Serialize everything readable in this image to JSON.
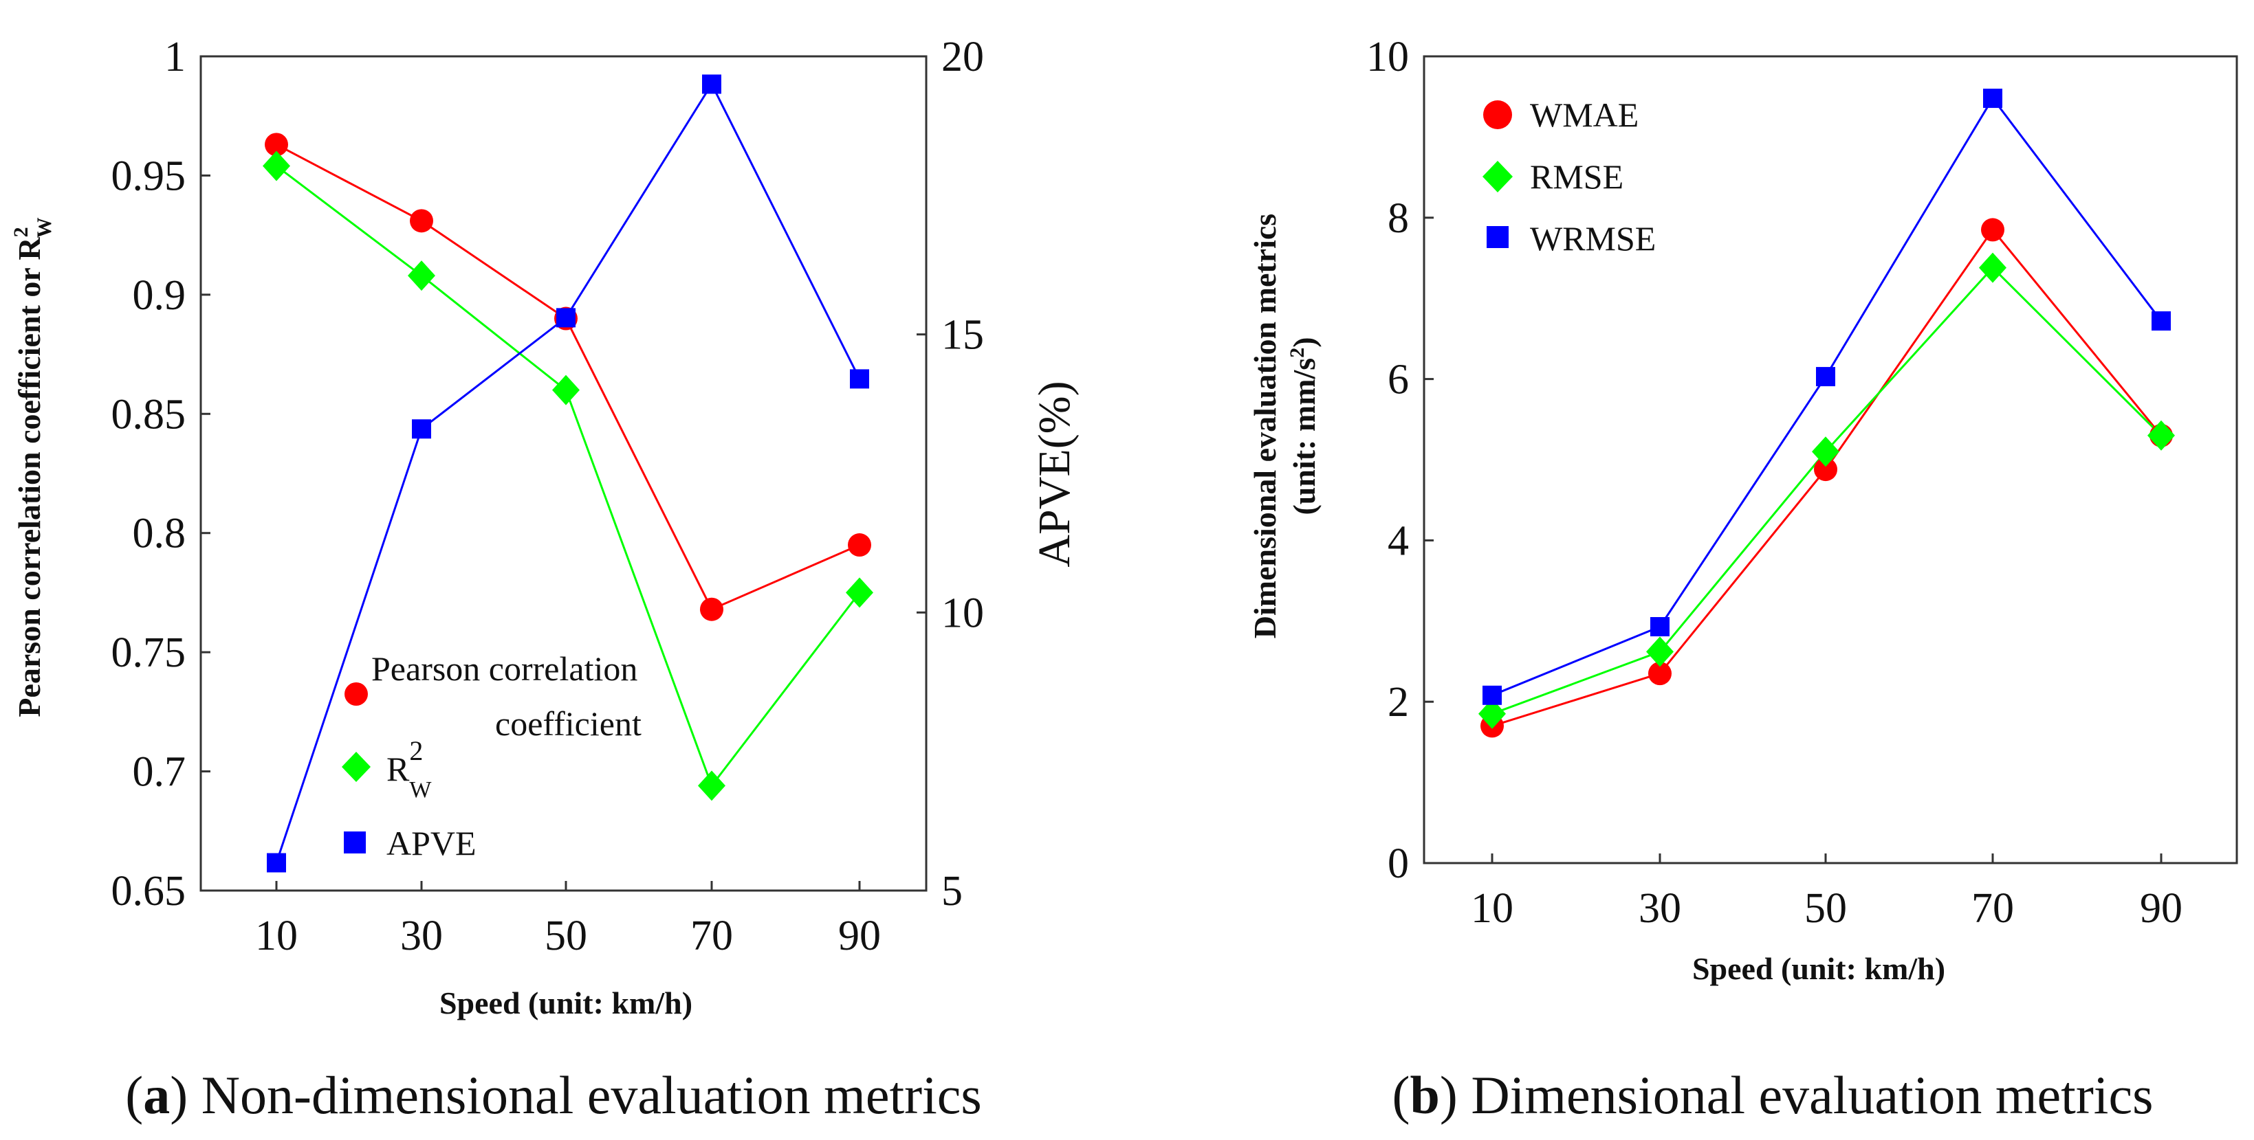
{
  "chart_data": [
    {
      "id": "a",
      "type": "line",
      "caption_letter": "a",
      "caption_text": "Non-dimensional evaluation metrics",
      "categories": [
        10,
        30,
        50,
        70,
        90
      ],
      "xlabel": "Speed (unit:  km/h)",
      "ylabel": "Pearson correlation coefficient or R",
      "ylabel_sup": "2",
      "ylabel_sub": "W",
      "ylim": [
        0.65,
        1.0
      ],
      "yticks": [
        "0.65",
        "0.7",
        "0.75",
        "0.8",
        "0.85",
        "0.9",
        "0.95",
        "1"
      ],
      "y2label": "APVE(%)",
      "y2lim": [
        5,
        20
      ],
      "y2ticks": [
        "5",
        "10",
        "15",
        "20"
      ],
      "series": [
        {
          "name": "Pearson correlation coefficient",
          "axis": "left",
          "marker": "circle",
          "color": "#ff0000",
          "values": [
            0.963,
            0.931,
            0.89,
            0.768,
            0.795
          ]
        },
        {
          "name": "R",
          "name_sup": "2",
          "name_sub": "W",
          "axis": "left",
          "marker": "diamond",
          "color": "#00ff00",
          "values": [
            0.954,
            0.908,
            0.86,
            0.694,
            0.775
          ]
        },
        {
          "name": "APVE",
          "axis": "right",
          "marker": "square",
          "color": "#0000ff",
          "values": [
            5.5,
            13.3,
            15.3,
            19.5,
            14.2
          ]
        }
      ],
      "legend": {
        "position": "lower-left",
        "entries": [
          "Pearson correlation",
          "coefficient",
          "R",
          "APVE"
        ]
      }
    },
    {
      "id": "b",
      "type": "line",
      "caption_letter": "b",
      "caption_text": "Dimensional evaluation metrics",
      "categories": [
        10,
        30,
        50,
        70,
        90
      ],
      "xlabel": "Speed (unit: km/h)",
      "ylabel_line1": "Dimensional evaluation metrics",
      "ylabel_line2": "(unit: mm/s",
      "ylabel_line2_sup": "2",
      "ylabel_line2_end": ")",
      "ylim": [
        0,
        10
      ],
      "yticks": [
        "0",
        "2",
        "4",
        "6",
        "8",
        "10"
      ],
      "series": [
        {
          "name": "WMAE",
          "marker": "circle",
          "color": "#ff0000",
          "values": [
            1.7,
            2.35,
            4.88,
            7.85,
            5.3
          ]
        },
        {
          "name": "RMSE",
          "marker": "diamond",
          "color": "#00ff00",
          "values": [
            1.85,
            2.62,
            5.1,
            7.38,
            5.3
          ]
        },
        {
          "name": "WRMSE",
          "marker": "square",
          "color": "#0000ff",
          "values": [
            2.08,
            2.93,
            6.03,
            9.48,
            6.72
          ]
        }
      ],
      "legend": {
        "position": "top-left"
      }
    }
  ]
}
